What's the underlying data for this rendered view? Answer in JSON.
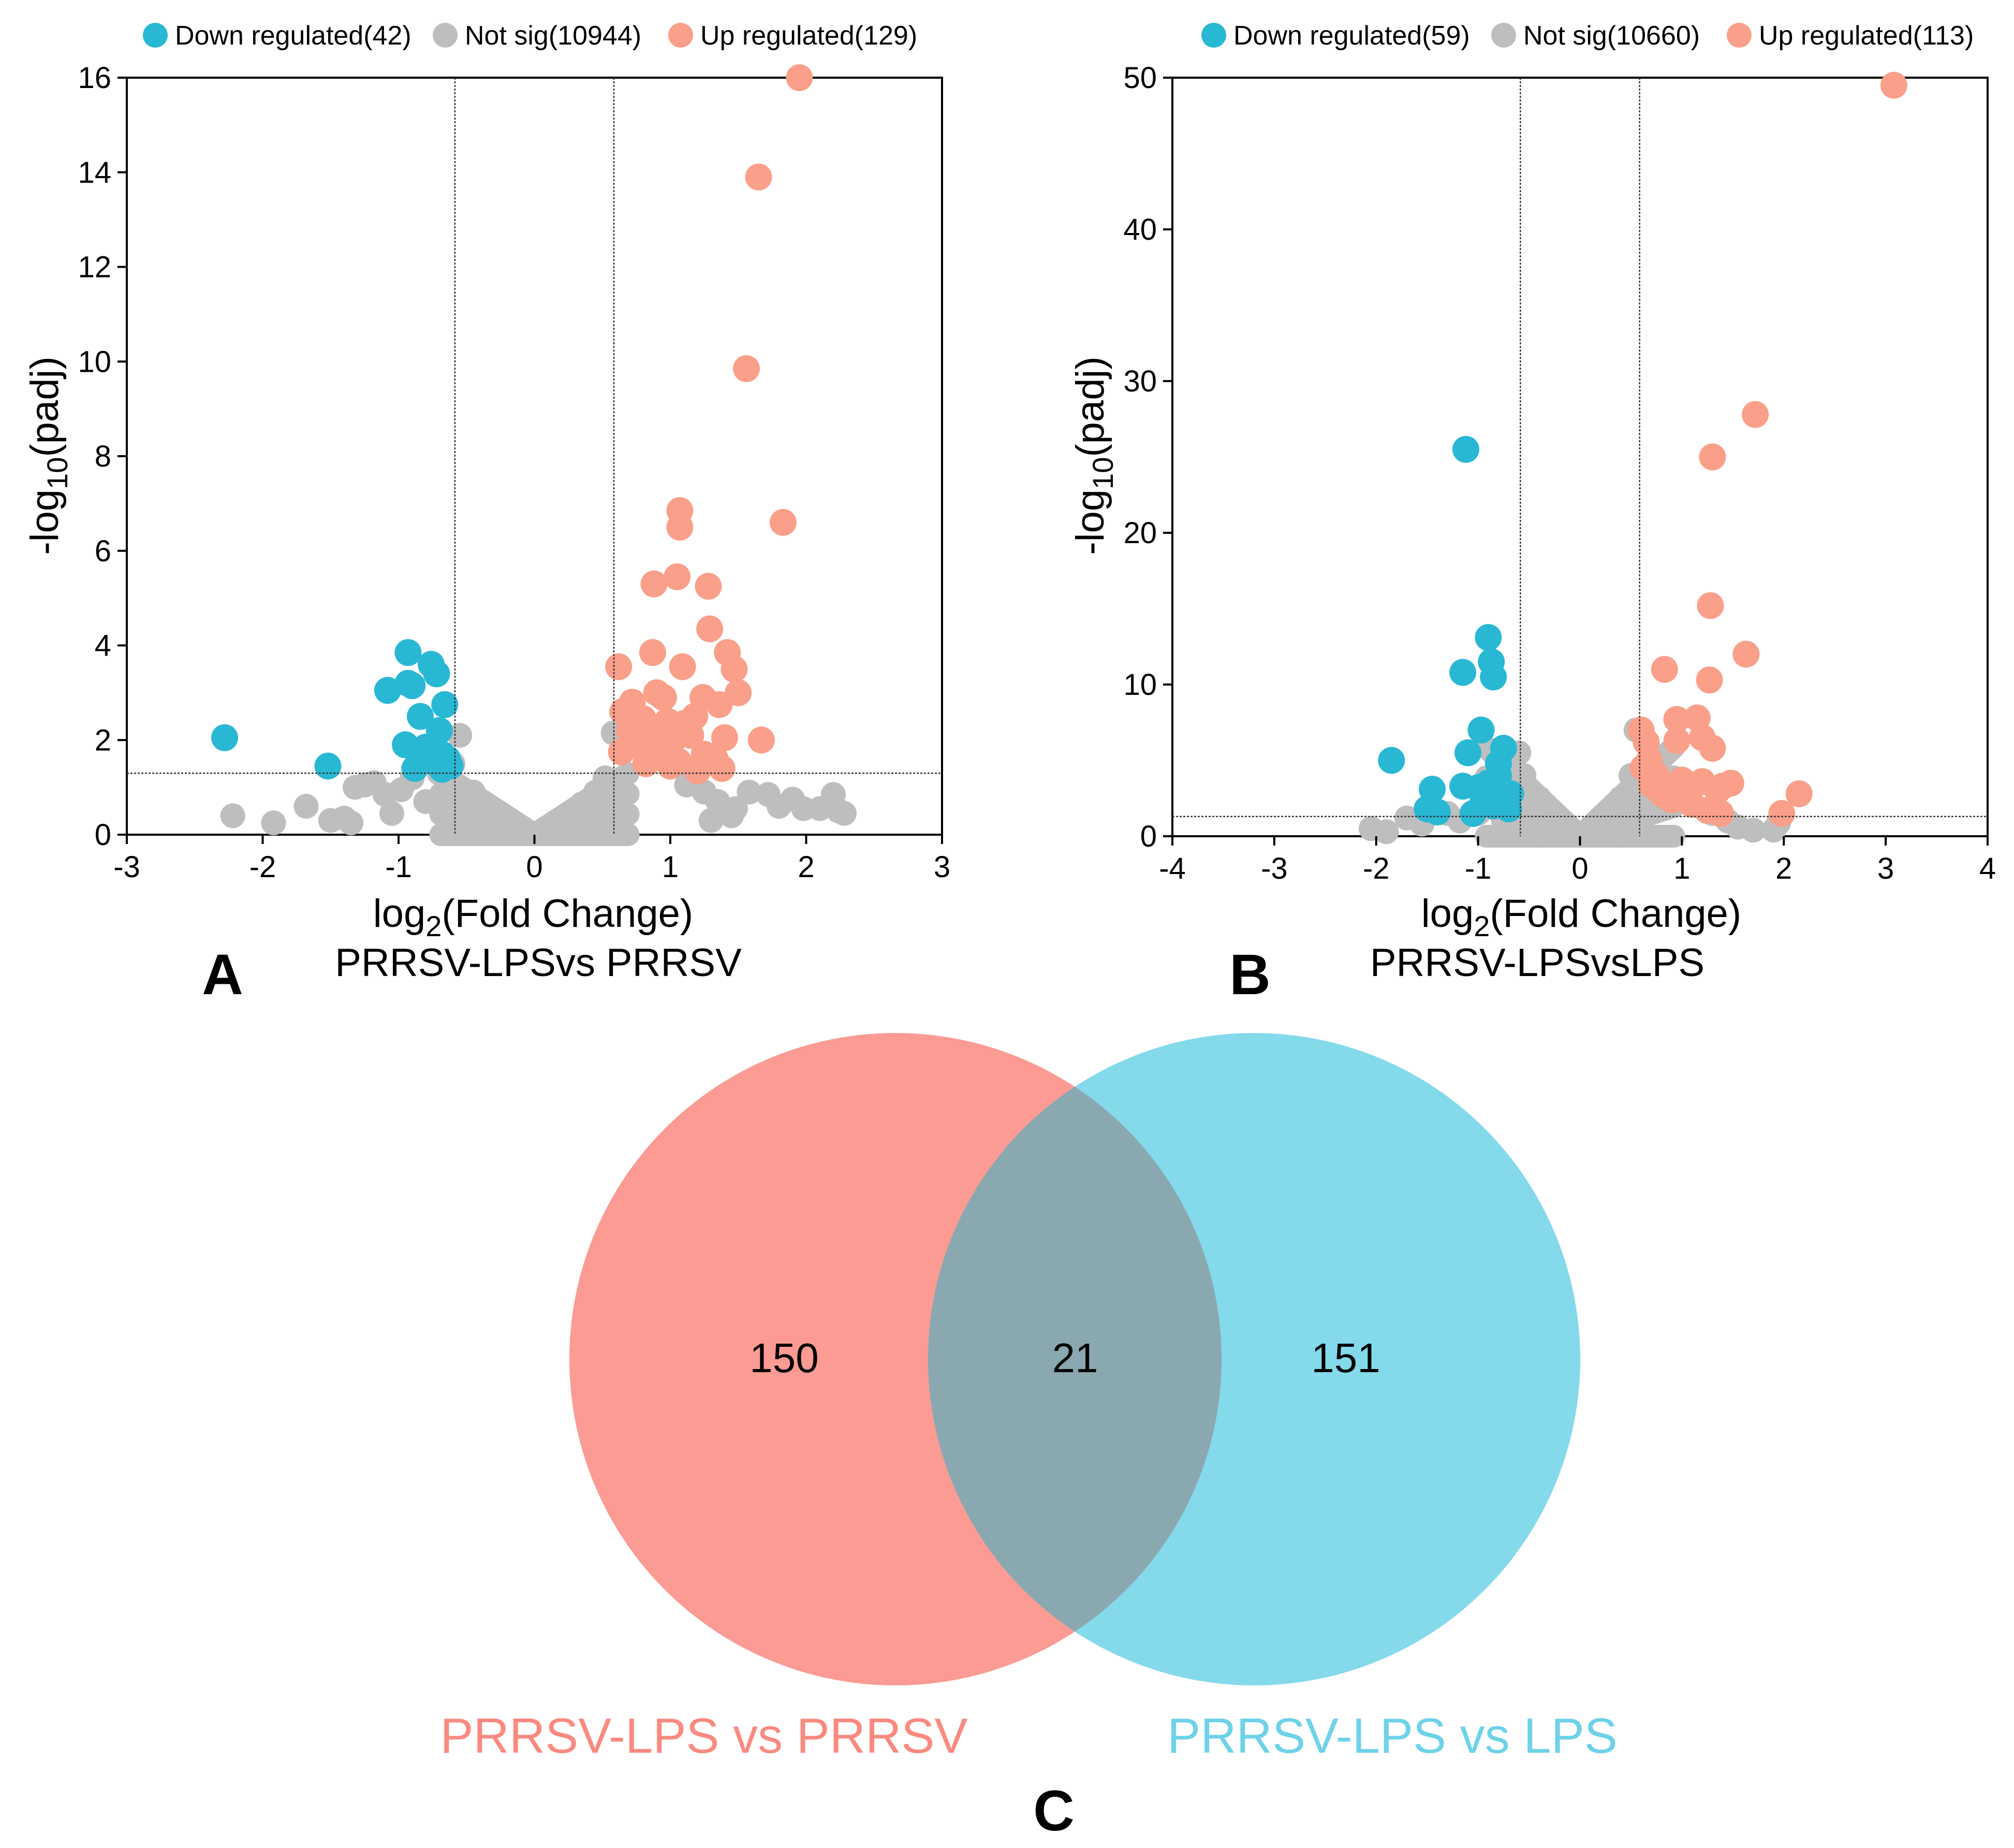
{
  "chart_data": [
    {
      "panel": "A",
      "type": "scatter",
      "subtitle": "PRRSV-LPSvs PRRSV",
      "xlabel_main": "log",
      "xlabel_sub": "2",
      "xlabel_rest": "(Fold Change)",
      "ylabel_main": "-log",
      "ylabel_sub": "10",
      "ylabel_rest": "(padj)",
      "xlim": [
        -3,
        3
      ],
      "ylim": [
        0,
        16
      ],
      "xticks": [
        -3,
        -2,
        -1,
        0,
        1,
        2,
        3
      ],
      "yticks": [
        0,
        2,
        4,
        6,
        8,
        10,
        12,
        14,
        16
      ],
      "fc_threshold": 0.585,
      "padj_threshold": 1.3,
      "legend": [
        {
          "label": "Down regulated(42)",
          "color": "#29B8D4"
        },
        {
          "label": "Not sig(10944)",
          "color": "#BEBEBE"
        },
        {
          "label": "Up regulated(129)",
          "color": "#FA9F8A"
        }
      ],
      "series": {
        "down": [
          [
            -2.28,
            2.05
          ],
          [
            -1.52,
            1.45
          ],
          [
            -0.93,
            3.85
          ],
          [
            -0.76,
            3.6
          ],
          [
            -0.72,
            3.4
          ],
          [
            -0.93,
            3.2
          ],
          [
            -0.9,
            3.15
          ],
          [
            -1.08,
            3.05
          ],
          [
            -0.66,
            2.75
          ],
          [
            -0.84,
            2.5
          ],
          [
            -0.7,
            2.2
          ],
          [
            -0.95,
            1.9
          ],
          [
            -0.8,
            1.85
          ],
          [
            -0.68,
            1.7
          ],
          [
            -0.64,
            1.6
          ],
          [
            -0.73,
            1.55
          ],
          [
            -0.88,
            1.4
          ],
          [
            -0.66,
            1.5
          ],
          [
            -0.62,
            1.45
          ],
          [
            -0.78,
            1.62
          ],
          [
            -0.68,
            1.38
          ]
        ],
        "up": [
          [
            1.95,
            16.0
          ],
          [
            1.65,
            13.9
          ],
          [
            1.56,
            9.85
          ],
          [
            1.83,
            6.6
          ],
          [
            1.07,
            6.85
          ],
          [
            1.07,
            6.5
          ],
          [
            1.28,
            5.25
          ],
          [
            1.05,
            5.45
          ],
          [
            0.88,
            5.3
          ],
          [
            1.29,
            4.35
          ],
          [
            1.42,
            3.85
          ],
          [
            1.47,
            3.5
          ],
          [
            0.87,
            3.85
          ],
          [
            1.09,
            3.55
          ],
          [
            0.62,
            3.55
          ],
          [
            1.5,
            3.0
          ],
          [
            1.24,
            2.9
          ],
          [
            1.36,
            2.75
          ],
          [
            0.9,
            3.0
          ],
          [
            0.95,
            2.9
          ],
          [
            0.72,
            2.8
          ],
          [
            0.65,
            2.6
          ],
          [
            0.8,
            2.45
          ],
          [
            0.98,
            2.4
          ],
          [
            1.1,
            2.35
          ],
          [
            1.18,
            2.5
          ],
          [
            0.7,
            2.2
          ],
          [
            0.85,
            2.1
          ],
          [
            1.02,
            2.0
          ],
          [
            1.15,
            2.1
          ],
          [
            1.4,
            2.05
          ],
          [
            1.67,
            2.0
          ],
          [
            0.75,
            1.9
          ],
          [
            0.93,
            1.8
          ],
          [
            1.25,
            1.7
          ],
          [
            1.33,
            1.6
          ],
          [
            0.64,
            1.75
          ],
          [
            1.06,
            1.55
          ],
          [
            1.38,
            1.4
          ],
          [
            0.82,
            1.5
          ],
          [
            1.0,
            1.45
          ],
          [
            1.2,
            1.35
          ]
        ],
        "ns": [
          [
            -2.22,
            0.4
          ],
          [
            -1.92,
            0.25
          ],
          [
            -1.68,
            0.6
          ],
          [
            -1.4,
            0.35
          ],
          [
            -1.35,
            0.25
          ],
          [
            -1.32,
            1.0
          ],
          [
            -1.25,
            1.05
          ],
          [
            -1.18,
            1.1
          ],
          [
            -1.1,
            0.85
          ],
          [
            -1.05,
            0.45
          ],
          [
            -0.98,
            0.95
          ],
          [
            -0.9,
            1.2
          ],
          [
            -0.8,
            0.7
          ],
          [
            -0.7,
            1.3
          ],
          [
            -0.6,
            1.5
          ],
          [
            -0.55,
            2.1
          ],
          [
            -0.45,
            0.9
          ],
          [
            -0.35,
            0.6
          ],
          [
            -0.25,
            0.35
          ],
          [
            -0.15,
            0.2
          ],
          [
            -0.08,
            0.1
          ],
          [
            0.08,
            0.1
          ],
          [
            0.15,
            0.22
          ],
          [
            0.25,
            0.4
          ],
          [
            0.35,
            0.65
          ],
          [
            0.45,
            0.9
          ],
          [
            0.52,
            1.2
          ],
          [
            0.58,
            2.15
          ],
          [
            1.12,
            1.05
          ],
          [
            1.25,
            0.9
          ],
          [
            1.35,
            0.7
          ],
          [
            1.48,
            0.55
          ],
          [
            1.58,
            0.9
          ],
          [
            1.72,
            0.85
          ],
          [
            1.8,
            0.6
          ],
          [
            1.9,
            0.75
          ],
          [
            1.98,
            0.55
          ],
          [
            2.2,
            0.85
          ],
          [
            2.24,
            0.5
          ],
          [
            2.28,
            0.45
          ],
          [
            2.1,
            0.55
          ],
          [
            1.45,
            0.4
          ],
          [
            1.3,
            0.3
          ],
          [
            -1.5,
            0.3
          ]
        ]
      }
    },
    {
      "panel": "B",
      "type": "scatter",
      "subtitle": "PRRSV-LPSvsLPS",
      "xlabel_main": "log",
      "xlabel_sub": "2",
      "xlabel_rest": "(Fold Change)",
      "ylabel_main": "-log",
      "ylabel_sub": "10",
      "ylabel_rest": "(padj)",
      "xlim": [
        -4,
        4
      ],
      "ylim": [
        0,
        50
      ],
      "xticks": [
        -4,
        -3,
        -2,
        -1,
        0,
        1,
        2,
        3,
        4
      ],
      "yticks": [
        0,
        10,
        20,
        30,
        40,
        50
      ],
      "fc_threshold": 0.585,
      "padj_threshold": 1.3,
      "legend": [
        {
          "label": "Down regulated(59)",
          "color": "#29B8D4"
        },
        {
          "label": "Not sig(10660)",
          "color": "#BEBEBE"
        },
        {
          "label": "Up regulated(113)",
          "color": "#FA9F8A"
        }
      ],
      "series": {
        "down": [
          [
            -1.12,
            25.5
          ],
          [
            -0.9,
            13.1
          ],
          [
            -0.87,
            11.5
          ],
          [
            -0.85,
            10.5
          ],
          [
            -1.15,
            10.8
          ],
          [
            -0.97,
            7.0
          ],
          [
            -1.85,
            5.0
          ],
          [
            -1.1,
            5.5
          ],
          [
            -0.75,
            5.8
          ],
          [
            -0.8,
            4.8
          ],
          [
            -1.45,
            3.1
          ],
          [
            -1.15,
            3.3
          ],
          [
            -1.0,
            3.2
          ],
          [
            -0.9,
            3.5
          ],
          [
            -0.8,
            4.0
          ],
          [
            -0.78,
            3.0
          ],
          [
            -1.5,
            1.8
          ],
          [
            -1.4,
            1.6
          ],
          [
            -1.05,
            1.5
          ],
          [
            -0.85,
            2.0
          ],
          [
            -0.95,
            2.5
          ],
          [
            -0.7,
            1.8
          ],
          [
            -0.68,
            2.8
          ]
        ],
        "up": [
          [
            3.08,
            49.5
          ],
          [
            1.72,
            27.8
          ],
          [
            1.3,
            25.0
          ],
          [
            1.28,
            15.2
          ],
          [
            1.63,
            12.0
          ],
          [
            0.83,
            11.0
          ],
          [
            1.27,
            10.3
          ],
          [
            0.95,
            7.7
          ],
          [
            1.15,
            7.8
          ],
          [
            0.6,
            7.0
          ],
          [
            0.95,
            6.3
          ],
          [
            1.2,
            6.5
          ],
          [
            1.3,
            5.8
          ],
          [
            0.65,
            6.2
          ],
          [
            2.15,
            2.8
          ],
          [
            1.98,
            1.5
          ],
          [
            1.4,
            3.3
          ],
          [
            1.48,
            3.5
          ],
          [
            1.2,
            3.6
          ],
          [
            1.0,
            3.7
          ],
          [
            0.75,
            4.0
          ],
          [
            0.7,
            3.4
          ],
          [
            0.8,
            2.8
          ],
          [
            0.9,
            2.4
          ],
          [
            1.1,
            2.1
          ],
          [
            1.25,
            1.7
          ],
          [
            1.38,
            1.5
          ],
          [
            0.62,
            4.5
          ],
          [
            0.68,
            5.0
          ],
          [
            1.05,
            3.0
          ],
          [
            1.35,
            3.0
          ]
        ],
        "ns": [
          [
            -2.05,
            0.5
          ],
          [
            -1.7,
            1.2
          ],
          [
            -1.55,
            0.8
          ],
          [
            -1.3,
            1.5
          ],
          [
            -1.18,
            1.0
          ],
          [
            -1.0,
            1.5
          ],
          [
            -0.6,
            5.5
          ],
          [
            -0.55,
            4.0
          ],
          [
            -0.4,
            2.5
          ],
          [
            -0.3,
            1.5
          ],
          [
            -0.2,
            0.8
          ],
          [
            -0.1,
            0.3
          ],
          [
            0.1,
            0.3
          ],
          [
            0.2,
            0.8
          ],
          [
            0.3,
            1.5
          ],
          [
            0.4,
            2.5
          ],
          [
            0.5,
            4.0
          ],
          [
            0.55,
            7.0
          ],
          [
            1.3,
            1.5
          ],
          [
            1.45,
            1.0
          ],
          [
            1.55,
            0.6
          ],
          [
            1.7,
            0.4
          ],
          [
            1.95,
            0.9
          ],
          [
            1.9,
            0.4
          ],
          [
            -1.9,
            0.3
          ],
          [
            -0.75,
            1.0
          ]
        ]
      }
    },
    {
      "panel": "C",
      "type": "venn",
      "sets": [
        {
          "name": "PRRSV-LPS vs PRRSV",
          "only": 150,
          "color": "#FA8A80"
        },
        {
          "name": "PRRSV-LPS vs LPS",
          "only": 151,
          "color": "#6ED2E8"
        }
      ],
      "intersection": 21
    }
  ],
  "panel_labels": [
    "A",
    "B",
    "C"
  ]
}
